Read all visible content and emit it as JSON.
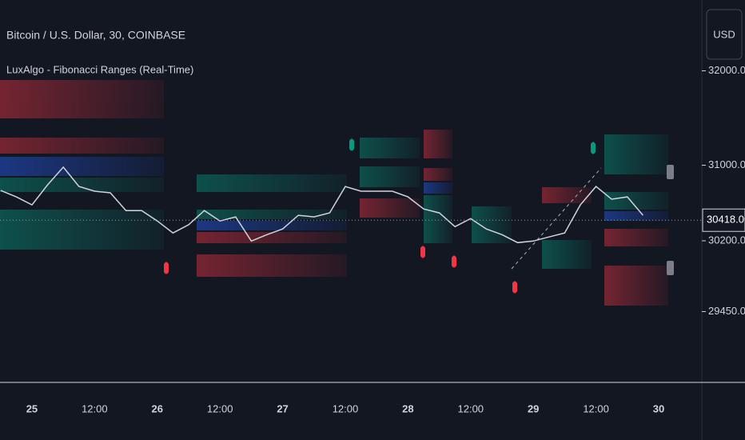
{
  "chart_data": {
    "type": "line",
    "title": "Bitcoin / U.S. Dollar, 30, COINBASE",
    "subtitle": "LuxAlgo - Fibonacci Ranges (Real-Time)",
    "currency": "USD",
    "categories": [
      null,
      null,
      "25",
      null,
      null,
      null,
      "12:00",
      null,
      null,
      null,
      "26",
      null,
      null,
      null,
      "12:00",
      null,
      null,
      null,
      "27",
      null,
      null,
      null,
      "12:00",
      null,
      null,
      null,
      "28",
      null,
      null,
      null,
      "12:00",
      null,
      null,
      null,
      "29",
      null,
      null,
      null,
      "12:00",
      null,
      null,
      null,
      "30"
    ],
    "series": [
      {
        "name": "BTC/USD",
        "color": "#d1d4dc",
        "values": [
          30733,
          30665,
          30580,
          30793,
          30980,
          30775,
          30725,
          30708,
          30520,
          30520,
          30410,
          30283,
          30370,
          30520,
          30410,
          30453,
          30197,
          30265,
          30325,
          30470,
          30453,
          30495,
          30775,
          30725,
          30725,
          30725,
          30665,
          30537,
          30495,
          30350,
          30435,
          30325,
          30265,
          30180,
          30197,
          30240,
          30283,
          30580,
          30775,
          30640,
          30665,
          30470,
          null
        ]
      }
    ],
    "ylim": [
      28700,
      32750
    ],
    "yticks": [
      {
        "value": 29450,
        "label": "29450.00"
      },
      {
        "value": 30200,
        "label": "30200.00"
      },
      {
        "value": 31000,
        "label": "31000.00"
      },
      {
        "value": 32000,
        "label": "32000.00"
      }
    ],
    "last_price": {
      "value": 30418,
      "label": "30418.00"
    }
  }
}
